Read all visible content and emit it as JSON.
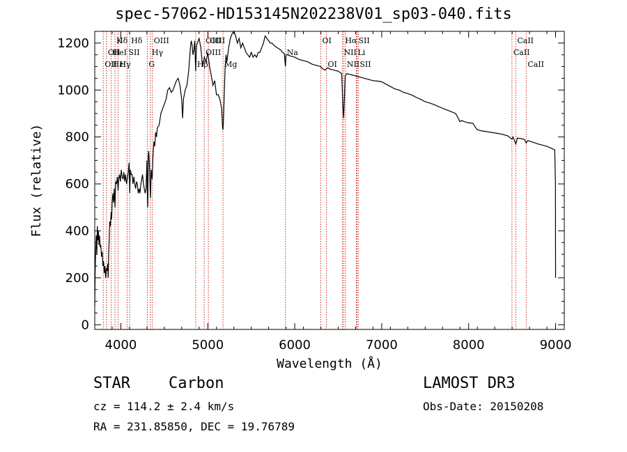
{
  "chart_data": {
    "type": "line",
    "title": "spec-57062-HD153145N202238V01_sp03-040.fits",
    "xlabel": "Wavelength (Å)",
    "ylabel": "Flux (relative)",
    "xlim": [
      3700,
      9100
    ],
    "ylim": [
      -20,
      1250
    ],
    "xticks": [
      4000,
      5000,
      6000,
      7000,
      8000,
      9000
    ],
    "yticks": [
      0,
      200,
      400,
      600,
      800,
      1000,
      1200
    ],
    "grid": false,
    "colors": {
      "spectrum": "#000000",
      "lines": "#cc2222"
    },
    "series": [
      {
        "values": [
          [
            3700,
            80
          ],
          [
            3705,
            230
          ],
          [
            3712,
            330
          ],
          [
            3718,
            380
          ],
          [
            3724,
            300
          ],
          [
            3730,
            420
          ],
          [
            3736,
            360
          ],
          [
            3742,
            400
          ],
          [
            3748,
            340
          ],
          [
            3755,
            380
          ],
          [
            3762,
            330
          ],
          [
            3770,
            340
          ],
          [
            3778,
            290
          ],
          [
            3786,
            310
          ],
          [
            3794,
            250
          ],
          [
            3802,
            270
          ],
          [
            3810,
            220
          ],
          [
            3818,
            250
          ],
          [
            3826,
            200
          ],
          [
            3834,
            240
          ],
          [
            3842,
            230
          ],
          [
            3850,
            260
          ],
          [
            3855,
            200
          ],
          [
            3860,
            300
          ],
          [
            3866,
            360
          ],
          [
            3872,
            440
          ],
          [
            3880,
            420
          ],
          [
            3888,
            480
          ],
          [
            3895,
            450
          ],
          [
            3900,
            520
          ],
          [
            3908,
            560
          ],
          [
            3916,
            520
          ],
          [
            3925,
            580
          ],
          [
            3933,
            500
          ],
          [
            3940,
            610
          ],
          [
            3950,
            600
          ],
          [
            3960,
            630
          ],
          [
            3968,
            570
          ],
          [
            3975,
            620
          ],
          [
            3985,
            640
          ],
          [
            3995,
            610
          ],
          [
            4005,
            660
          ],
          [
            4015,
            630
          ],
          [
            4025,
            620
          ],
          [
            4035,
            650
          ],
          [
            4045,
            610
          ],
          [
            4055,
            640
          ],
          [
            4065,
            600
          ],
          [
            4075,
            620
          ],
          [
            4085,
            650
          ],
          [
            4095,
            690
          ],
          [
            4102,
            560
          ],
          [
            4110,
            660
          ],
          [
            4120,
            640
          ],
          [
            4130,
            640
          ],
          [
            4140,
            600
          ],
          [
            4150,
            630
          ],
          [
            4160,
            600
          ],
          [
            4170,
            580
          ],
          [
            4180,
            610
          ],
          [
            4190,
            600
          ],
          [
            4200,
            560
          ],
          [
            4210,
            580
          ],
          [
            4220,
            560
          ],
          [
            4230,
            600
          ],
          [
            4240,
            620
          ],
          [
            4250,
            640
          ],
          [
            4260,
            600
          ],
          [
            4270,
            580
          ],
          [
            4280,
            560
          ],
          [
            4290,
            580
          ],
          [
            4300,
            700
          ],
          [
            4305,
            560
          ],
          [
            4310,
            500
          ],
          [
            4315,
            720
          ],
          [
            4320,
            740
          ],
          [
            4330,
            680
          ],
          [
            4335,
            600
          ],
          [
            4340,
            540
          ],
          [
            4350,
            660
          ],
          [
            4360,
            620
          ],
          [
            4370,
            720
          ],
          [
            4380,
            780
          ],
          [
            4390,
            760
          ],
          [
            4400,
            820
          ],
          [
            4410,
            800
          ],
          [
            4420,
            840
          ],
          [
            4440,
            850
          ],
          [
            4460,
            900
          ],
          [
            4480,
            920
          ],
          [
            4500,
            940
          ],
          [
            4520,
            960
          ],
          [
            4540,
            1000
          ],
          [
            4560,
            1010
          ],
          [
            4580,
            990
          ],
          [
            4600,
            1000
          ],
          [
            4620,
            1020
          ],
          [
            4640,
            1040
          ],
          [
            4660,
            1050
          ],
          [
            4680,
            1020
          ],
          [
            4700,
            960
          ],
          [
            4710,
            880
          ],
          [
            4720,
            960
          ],
          [
            4740,
            1000
          ],
          [
            4760,
            1020
          ],
          [
            4780,
            1080
          ],
          [
            4800,
            1180
          ],
          [
            4810,
            1210
          ],
          [
            4820,
            1190
          ],
          [
            4830,
            1150
          ],
          [
            4840,
            1170
          ],
          [
            4850,
            1210
          ],
          [
            4861,
            1080
          ],
          [
            4870,
            1190
          ],
          [
            4880,
            1200
          ],
          [
            4900,
            1220
          ],
          [
            4920,
            1180
          ],
          [
            4940,
            1100
          ],
          [
            4960,
            1140
          ],
          [
            4980,
            1120
          ],
          [
            5000,
            1160
          ],
          [
            5020,
            1100
          ],
          [
            5040,
            1060
          ],
          [
            5060,
            1020
          ],
          [
            5080,
            1040
          ],
          [
            5100,
            980
          ],
          [
            5120,
            980
          ],
          [
            5140,
            960
          ],
          [
            5160,
            920
          ],
          [
            5170,
            840
          ],
          [
            5175,
            830
          ],
          [
            5180,
            870
          ],
          [
            5190,
            990
          ],
          [
            5200,
            1100
          ],
          [
            5210,
            1150
          ],
          [
            5220,
            1120
          ],
          [
            5240,
            1180
          ],
          [
            5260,
            1220
          ],
          [
            5280,
            1240
          ],
          [
            5300,
            1250
          ],
          [
            5320,
            1230
          ],
          [
            5340,
            1200
          ],
          [
            5360,
            1220
          ],
          [
            5380,
            1180
          ],
          [
            5400,
            1200
          ],
          [
            5420,
            1180
          ],
          [
            5440,
            1160
          ],
          [
            5460,
            1150
          ],
          [
            5480,
            1140
          ],
          [
            5500,
            1160
          ],
          [
            5520,
            1140
          ],
          [
            5540,
            1150
          ],
          [
            5560,
            1140
          ],
          [
            5580,
            1160
          ],
          [
            5600,
            1160
          ],
          [
            5620,
            1180
          ],
          [
            5640,
            1200
          ],
          [
            5660,
            1230
          ],
          [
            5680,
            1220
          ],
          [
            5700,
            1210
          ],
          [
            5720,
            1200
          ],
          [
            5740,
            1200
          ],
          [
            5760,
            1190
          ],
          [
            5780,
            1185
          ],
          [
            5800,
            1180
          ],
          [
            5820,
            1175
          ],
          [
            5840,
            1170
          ],
          [
            5860,
            1160
          ],
          [
            5880,
            1155
          ],
          [
            5893,
            1100
          ],
          [
            5900,
            1150
          ],
          [
            5920,
            1150
          ],
          [
            5950,
            1145
          ],
          [
            6000,
            1140
          ],
          [
            6050,
            1130
          ],
          [
            6100,
            1125
          ],
          [
            6150,
            1120
          ],
          [
            6200,
            1110
          ],
          [
            6250,
            1105
          ],
          [
            6300,
            1100
          ],
          [
            6320,
            1090
          ],
          [
            6350,
            1085
          ],
          [
            6380,
            1095
          ],
          [
            6400,
            1090
          ],
          [
            6450,
            1085
          ],
          [
            6500,
            1080
          ],
          [
            6540,
            1070
          ],
          [
            6555,
            920
          ],
          [
            6563,
            880
          ],
          [
            6570,
            950
          ],
          [
            6580,
            1060
          ],
          [
            6600,
            1070
          ],
          [
            6650,
            1065
          ],
          [
            6700,
            1060
          ],
          [
            6750,
            1055
          ],
          [
            6800,
            1050
          ],
          [
            6850,
            1045
          ],
          [
            6900,
            1040
          ],
          [
            6950,
            1038
          ],
          [
            7000,
            1035
          ],
          [
            7050,
            1025
          ],
          [
            7100,
            1015
          ],
          [
            7150,
            1005
          ],
          [
            7200,
            1000
          ],
          [
            7250,
            990
          ],
          [
            7300,
            985
          ],
          [
            7350,
            978
          ],
          [
            7400,
            968
          ],
          [
            7450,
            960
          ],
          [
            7500,
            950
          ],
          [
            7550,
            945
          ],
          [
            7600,
            938
          ],
          [
            7650,
            930
          ],
          [
            7700,
            922
          ],
          [
            7750,
            915
          ],
          [
            7800,
            908
          ],
          [
            7850,
            900
          ],
          [
            7880,
            880
          ],
          [
            7900,
            865
          ],
          [
            7920,
            870
          ],
          [
            7950,
            865
          ],
          [
            8000,
            860
          ],
          [
            8050,
            858
          ],
          [
            8080,
            840
          ],
          [
            8100,
            830
          ],
          [
            8150,
            826
          ],
          [
            8200,
            823
          ],
          [
            8250,
            820
          ],
          [
            8300,
            817
          ],
          [
            8350,
            814
          ],
          [
            8400,
            810
          ],
          [
            8450,
            805
          ],
          [
            8498,
            790
          ],
          [
            8510,
            800
          ],
          [
            8542,
            770
          ],
          [
            8560,
            795
          ],
          [
            8600,
            793
          ],
          [
            8640,
            790
          ],
          [
            8662,
            775
          ],
          [
            8680,
            785
          ],
          [
            8720,
            780
          ],
          [
            8760,
            775
          ],
          [
            8800,
            770
          ],
          [
            8850,
            765
          ],
          [
            8900,
            760
          ],
          [
            8950,
            752
          ],
          [
            8990,
            745
          ],
          [
            8998,
            600
          ],
          [
            9000,
            200
          ]
        ]
      }
    ],
    "lines": [
      {
        "wl": 3798,
        "label": "OII",
        "row": 2
      },
      {
        "wl": 3835,
        "label": "OII",
        "row": 1
      },
      {
        "wl": 3889,
        "label": "Hε",
        "row": 2
      },
      {
        "wl": 3889,
        "label": "HeI",
        "row": 1
      },
      {
        "wl": 3933,
        "label": "Hδ",
        "row": 0
      },
      {
        "wl": 3933,
        "label": "K",
        "row": 0
      },
      {
        "wl": 3968,
        "label": "Hγ",
        "row": 2
      },
      {
        "wl": 3968,
        "label": "H",
        "row": 2
      },
      {
        "wl": 4072,
        "label": "SII",
        "row": 1
      },
      {
        "wl": 4102,
        "label": "Hδ",
        "row": 0
      },
      {
        "wl": 4304,
        "label": "G",
        "row": 2
      },
      {
        "wl": 4340,
        "label": "Hγ",
        "row": 1
      },
      {
        "wl": 4363,
        "label": "OIII",
        "row": 0
      },
      {
        "wl": 4861,
        "label": "Hβ",
        "row": 2
      },
      {
        "wl": 4959,
        "label": "OIII",
        "row": 0
      },
      {
        "wl": 4959,
        "label": "OIII",
        "row": 1
      },
      {
        "wl": 5007,
        "label": "OIII",
        "row": 0
      },
      {
        "wl": 5175,
        "label": "Mg",
        "row": 2
      },
      {
        "wl": 5893,
        "label": "Na",
        "row": 1
      },
      {
        "wl": 6300,
        "label": "OI",
        "row": 0
      },
      {
        "wl": 6364,
        "label": "OI",
        "row": 2
      },
      {
        "wl": 6548,
        "label": "NII",
        "row": 1
      },
      {
        "wl": 6563,
        "label": "Hα",
        "row": 0
      },
      {
        "wl": 6583,
        "label": "NII",
        "row": 2
      },
      {
        "wl": 6708,
        "label": "Li",
        "row": 1
      },
      {
        "wl": 6716,
        "label": "SII",
        "row": 0
      },
      {
        "wl": 6731,
        "label": "SII",
        "row": 2
      },
      {
        "wl": 8498,
        "label": "CaII",
        "row": 1
      },
      {
        "wl": 8542,
        "label": "CaII",
        "row": 0
      },
      {
        "wl": 8662,
        "label": "CaII",
        "row": 2
      }
    ]
  },
  "info": {
    "object_type": "STAR",
    "subclass": "Carbon",
    "survey": "LAMOST DR3",
    "cz": "cz = 114.2 ± 2.4 km/s",
    "obs_date": "Obs-Date: 20150208",
    "coords": "RA = 231.85850, DEC =  19.76789"
  }
}
